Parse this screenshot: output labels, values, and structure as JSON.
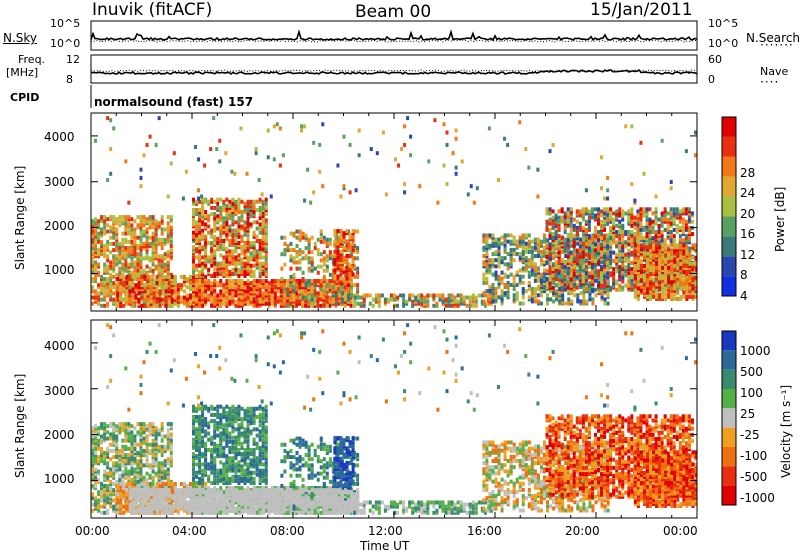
{
  "header": {
    "station": "Inuvik (fitACF)",
    "beam": "Beam 00",
    "date": "15/Jan/2011"
  },
  "top_panels": {
    "nsky_label": "N.Sky",
    "nsearch_label": "N.Search",
    "noise_left_ticks": [
      "10^5",
      "10^0"
    ],
    "noise_right_ticks": [
      "10^5",
      "10^0"
    ],
    "freq_label_line1": "Freq.",
    "freq_label_line2": "[MHz]",
    "freq_left_ticks": [
      "12",
      "8"
    ],
    "nave_label": "Nave",
    "nave_right_ticks": [
      "60",
      "0"
    ],
    "cpid_label": "CPID",
    "cpid_text": "normalsound (fast) 157"
  },
  "chart_data": [
    {
      "type": "heatmap",
      "panel": "power",
      "ylabel": "Slant Range [km]",
      "xlabel": "",
      "yticks": [
        "1000",
        "2000",
        "3000",
        "4000"
      ],
      "ylim": [
        180,
        4500
      ],
      "xlim": [
        0,
        24
      ],
      "colorbar_label": "Power [dB]",
      "colorbar_ticks": [
        "4",
        "8",
        "12",
        "16",
        "20",
        "24",
        "28"
      ],
      "colorbar_colors": [
        "#1030e0",
        "#2848b0",
        "#3a7a78",
        "#5aa060",
        "#a8c040",
        "#e0a830",
        "#f07818",
        "#e83010",
        "#e00000"
      ]
    },
    {
      "type": "heatmap",
      "panel": "velocity",
      "ylabel": "Slant Range [km]",
      "xlabel": "Time UT",
      "xticks": [
        "00:00",
        "04:00",
        "08:00",
        "12:00",
        "16:00",
        "20:00",
        "00:00"
      ],
      "yticks": [
        "1000",
        "2000",
        "3000",
        "4000"
      ],
      "ylim": [
        180,
        4500
      ],
      "xlim": [
        0,
        24
      ],
      "colorbar_label": "Velocity [m s⁻¹]",
      "colorbar_ticks": [
        "1000",
        "500",
        "100",
        "25",
        "-25",
        "-100",
        "-500",
        "-1000"
      ],
      "colorbar_colors": [
        "#1838c0",
        "#2a6a9a",
        "#3a8a70",
        "#56b048",
        "#c0c0c0",
        "#f0a020",
        "#f07010",
        "#e83010",
        "#e00000"
      ]
    }
  ]
}
